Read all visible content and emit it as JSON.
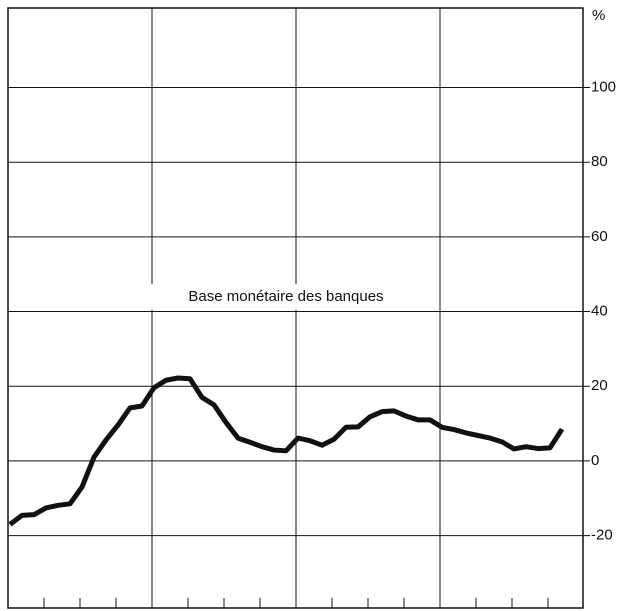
{
  "chart_data": {
    "type": "line",
    "y_unit": "%",
    "annotation": "Base monétaire des banques",
    "categories": [
      null,
      null,
      null,
      null,
      null,
      null,
      null,
      null,
      null,
      null,
      null,
      null,
      null,
      null,
      null,
      null,
      null,
      null,
      null,
      null,
      null,
      null,
      null,
      null,
      null,
      null,
      null,
      null,
      null,
      null,
      null,
      null,
      null,
      null,
      null,
      null,
      null,
      null,
      null,
      null,
      null,
      null,
      null,
      null,
      null,
      null,
      null
    ],
    "values": [
      -17,
      -14.6,
      -14.4,
      -12.6,
      -11.9,
      -11.5,
      -7,
      1,
      5.6,
      9.6,
      14.2,
      14.7,
      19.6,
      21.6,
      22.2,
      22,
      17,
      15,
      10.3,
      6.1,
      5,
      3.8,
      2.9,
      2.7,
      6.1,
      5.4,
      4.2,
      5.8,
      9,
      9.1,
      11.8,
      13.2,
      13.4,
      12,
      11,
      11,
      9,
      8.4,
      7.5,
      6.8,
      6.1,
      5.1,
      3.2,
      3.8,
      3.3,
      3.5,
      8.5
    ],
    "color": "#111111",
    "ylim": [
      -39.4,
      121.3
    ],
    "yticks": [
      -20,
      0,
      20,
      40,
      60,
      80,
      100
    ],
    "grid": true
  }
}
